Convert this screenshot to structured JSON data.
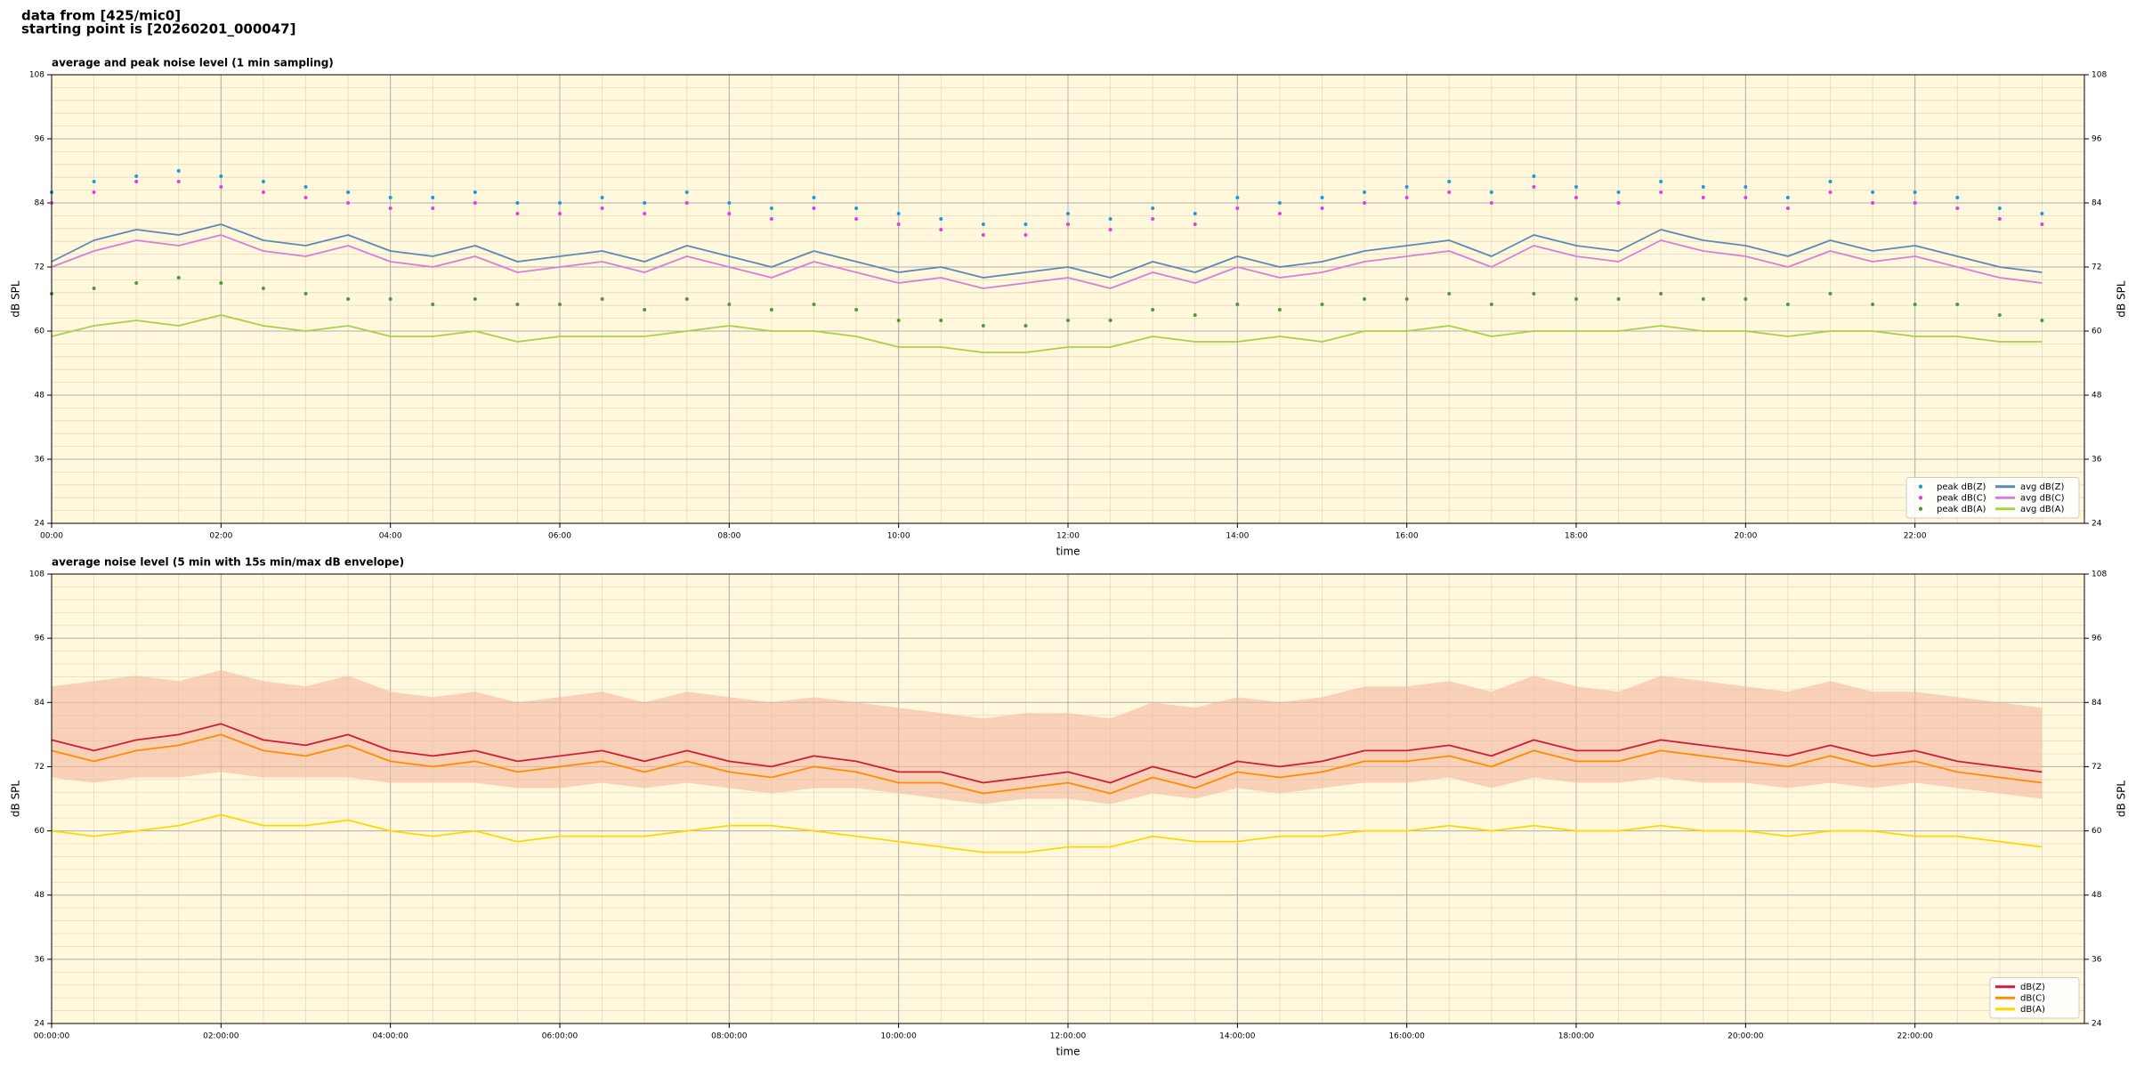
{
  "header": {
    "line1": "data from [425/mic0]",
    "line2": "starting point is [20260201_000047]"
  },
  "chart_data": [
    {
      "type": "line",
      "title": "average and peak noise level (1 min sampling)",
      "xlabel": "time",
      "ylabel": "dB SPL",
      "background": "#fff8dc",
      "grid": true,
      "minor_x_divisions": 4,
      "minor_y_divisions": 5,
      "legend": "lower right",
      "legend_columns": 2,
      "xlim": [
        0,
        24
      ],
      "xticks": [
        {
          "value": 0,
          "label": "00:00"
        },
        {
          "value": 2,
          "label": "02:00"
        },
        {
          "value": 4,
          "label": "04:00"
        },
        {
          "value": 6,
          "label": "06:00"
        },
        {
          "value": 8,
          "label": "08:00"
        },
        {
          "value": 10,
          "label": "10:00"
        },
        {
          "value": 12,
          "label": "12:00"
        },
        {
          "value": 14,
          "label": "14:00"
        },
        {
          "value": 16,
          "label": "16:00"
        },
        {
          "value": 18,
          "label": "18:00"
        },
        {
          "value": 20,
          "label": "20:00"
        },
        {
          "value": 22,
          "label": "22:00"
        }
      ],
      "ylim": [
        24,
        108
      ],
      "yticks": [
        24,
        36,
        48,
        60,
        72,
        84,
        96,
        108
      ],
      "x": [
        0,
        0.5,
        1,
        1.5,
        2,
        2.5,
        3,
        3.5,
        4,
        4.5,
        5,
        5.5,
        6,
        6.5,
        7,
        7.5,
        8,
        8.5,
        9,
        9.5,
        10,
        10.5,
        11,
        11.5,
        12,
        12.5,
        13,
        13.5,
        14,
        14.5,
        15,
        15.5,
        16,
        16.5,
        17,
        17.5,
        18,
        18.5,
        19,
        19.5,
        20,
        20.5,
        21,
        21.5,
        22,
        22.5,
        23,
        23.5
      ],
      "series": [
        {
          "name": "peak dB(Z)",
          "type": "scatter",
          "color": "#1f9bd8",
          "values": [
            86,
            88,
            89,
            90,
            89,
            88,
            87,
            86,
            85,
            85,
            86,
            84,
            84,
            85,
            84,
            86,
            84,
            83,
            85,
            83,
            82,
            81,
            80,
            80,
            82,
            81,
            83,
            82,
            85,
            84,
            85,
            86,
            87,
            88,
            86,
            89,
            87,
            86,
            88,
            87,
            87,
            85,
            88,
            86,
            86,
            85,
            83,
            82
          ]
        },
        {
          "name": "peak dB(C)",
          "type": "scatter",
          "color": "#e040e0",
          "values": [
            84,
            86,
            88,
            88,
            87,
            86,
            85,
            84,
            83,
            83,
            84,
            82,
            82,
            83,
            82,
            84,
            82,
            81,
            83,
            81,
            80,
            79,
            78,
            78,
            80,
            79,
            81,
            80,
            83,
            82,
            83,
            84,
            85,
            86,
            84,
            87,
            85,
            84,
            86,
            85,
            85,
            83,
            86,
            84,
            84,
            83,
            81,
            80
          ]
        },
        {
          "name": "peak dB(A)",
          "type": "scatter",
          "color": "#4f9a3a",
          "values": [
            67,
            68,
            69,
            70,
            69,
            68,
            67,
            66,
            66,
            65,
            66,
            65,
            65,
            66,
            64,
            66,
            65,
            64,
            65,
            64,
            62,
            62,
            61,
            61,
            62,
            62,
            64,
            63,
            65,
            64,
            65,
            66,
            66,
            67,
            65,
            67,
            66,
            66,
            67,
            66,
            66,
            65,
            67,
            65,
            65,
            65,
            63,
            62
          ]
        },
        {
          "name": "avg dB(Z)",
          "type": "line",
          "color": "#5b8ab5",
          "values": [
            73,
            77,
            79,
            78,
            80,
            77,
            76,
            78,
            75,
            74,
            76,
            73,
            74,
            75,
            73,
            76,
            74,
            72,
            75,
            73,
            71,
            72,
            70,
            71,
            72,
            70,
            73,
            71,
            74,
            72,
            73,
            75,
            76,
            77,
            74,
            78,
            76,
            75,
            79,
            77,
            76,
            74,
            77,
            75,
            76,
            74,
            72,
            71
          ]
        },
        {
          "name": "avg dB(C)",
          "type": "line",
          "color": "#d77fd6",
          "values": [
            72,
            75,
            77,
            76,
            78,
            75,
            74,
            76,
            73,
            72,
            74,
            71,
            72,
            73,
            71,
            74,
            72,
            70,
            73,
            71,
            69,
            70,
            68,
            69,
            70,
            68,
            71,
            69,
            72,
            70,
            71,
            73,
            74,
            75,
            72,
            76,
            74,
            73,
            77,
            75,
            74,
            72,
            75,
            73,
            74,
            72,
            70,
            69
          ]
        },
        {
          "name": "avg dB(A)",
          "type": "line",
          "color": "#a8d04a",
          "values": [
            59,
            61,
            62,
            61,
            63,
            61,
            60,
            61,
            59,
            59,
            60,
            58,
            59,
            59,
            59,
            60,
            61,
            60,
            60,
            59,
            57,
            57,
            56,
            56,
            57,
            57,
            59,
            58,
            58,
            59,
            58,
            60,
            60,
            61,
            59,
            60,
            60,
            60,
            61,
            60,
            60,
            59,
            60,
            60,
            59,
            59,
            58,
            58
          ]
        }
      ]
    },
    {
      "type": "line",
      "title": "average noise level (5 min with 15s min/max dB envelope)",
      "xlabel": "time",
      "ylabel": "dB SPL",
      "background": "#fff8dc",
      "grid": true,
      "minor_x_divisions": 4,
      "minor_y_divisions": 5,
      "legend": "lower right",
      "legend_columns": 1,
      "xlim": [
        0,
        24
      ],
      "xticks": [
        {
          "value": 0,
          "label": "00:00:00"
        },
        {
          "value": 2,
          "label": "02:00:00"
        },
        {
          "value": 4,
          "label": "04:00:00"
        },
        {
          "value": 6,
          "label": "06:00:00"
        },
        {
          "value": 8,
          "label": "08:00:00"
        },
        {
          "value": 10,
          "label": "10:00:00"
        },
        {
          "value": 12,
          "label": "12:00:00"
        },
        {
          "value": 14,
          "label": "14:00:00"
        },
        {
          "value": 16,
          "label": "16:00:00"
        },
        {
          "value": 18,
          "label": "18:00:00"
        },
        {
          "value": 20,
          "label": "20:00:00"
        },
        {
          "value": 22,
          "label": "22:00:00"
        }
      ],
      "ylim": [
        24,
        108
      ],
      "yticks": [
        24,
        36,
        48,
        60,
        72,
        84,
        96,
        108
      ],
      "x": [
        0,
        0.5,
        1,
        1.5,
        2,
        2.5,
        3,
        3.5,
        4,
        4.5,
        5,
        5.5,
        6,
        6.5,
        7,
        7.5,
        8,
        8.5,
        9,
        9.5,
        10,
        10.5,
        11,
        11.5,
        12,
        12.5,
        13,
        13.5,
        14,
        14.5,
        15,
        15.5,
        16,
        16.5,
        17,
        17.5,
        18,
        18.5,
        19,
        19.5,
        20,
        20.5,
        21,
        21.5,
        22,
        22.5,
        23,
        23.5
      ],
      "envelope": {
        "color": "#f4b8a0",
        "high": [
          87,
          88,
          89,
          88,
          90,
          88,
          87,
          89,
          86,
          85,
          86,
          84,
          85,
          86,
          84,
          86,
          85,
          84,
          85,
          84,
          83,
          82,
          81,
          82,
          82,
          81,
          84,
          83,
          85,
          84,
          85,
          87,
          87,
          88,
          86,
          89,
          87,
          86,
          89,
          88,
          87,
          86,
          88,
          86,
          86,
          85,
          84,
          83
        ],
        "low": [
          70,
          69,
          70,
          70,
          71,
          70,
          70,
          70,
          69,
          69,
          69,
          68,
          68,
          69,
          68,
          69,
          68,
          67,
          68,
          68,
          67,
          66,
          65,
          66,
          66,
          65,
          67,
          66,
          68,
          67,
          68,
          69,
          69,
          70,
          68,
          70,
          69,
          69,
          70,
          69,
          69,
          68,
          69,
          68,
          69,
          68,
          67,
          66
        ]
      },
      "series": [
        {
          "name": "dB(Z)",
          "type": "line",
          "color": "#d01c3c",
          "values": [
            77,
            75,
            77,
            78,
            80,
            77,
            76,
            78,
            75,
            74,
            75,
            73,
            74,
            75,
            73,
            75,
            73,
            72,
            74,
            73,
            71,
            71,
            69,
            70,
            71,
            69,
            72,
            70,
            73,
            72,
            73,
            75,
            75,
            76,
            74,
            77,
            75,
            75,
            77,
            76,
            75,
            74,
            76,
            74,
            75,
            73,
            72,
            71
          ]
        },
        {
          "name": "dB(C)",
          "type": "line",
          "color": "#ff8c00",
          "values": [
            75,
            73,
            75,
            76,
            78,
            75,
            74,
            76,
            73,
            72,
            73,
            71,
            72,
            73,
            71,
            73,
            71,
            70,
            72,
            71,
            69,
            69,
            67,
            68,
            69,
            67,
            70,
            68,
            71,
            70,
            71,
            73,
            73,
            74,
            72,
            75,
            73,
            73,
            75,
            74,
            73,
            72,
            74,
            72,
            73,
            71,
            70,
            69
          ]
        },
        {
          "name": "dB(A)",
          "type": "line",
          "color": "#ffd700",
          "values": [
            60,
            59,
            60,
            61,
            63,
            61,
            61,
            62,
            60,
            59,
            60,
            58,
            59,
            59,
            59,
            60,
            61,
            61,
            60,
            59,
            58,
            57,
            56,
            56,
            57,
            57,
            59,
            58,
            58,
            59,
            59,
            60,
            60,
            61,
            60,
            61,
            60,
            60,
            61,
            60,
            60,
            59,
            60,
            60,
            59,
            59,
            58,
            57
          ]
        }
      ]
    }
  ]
}
